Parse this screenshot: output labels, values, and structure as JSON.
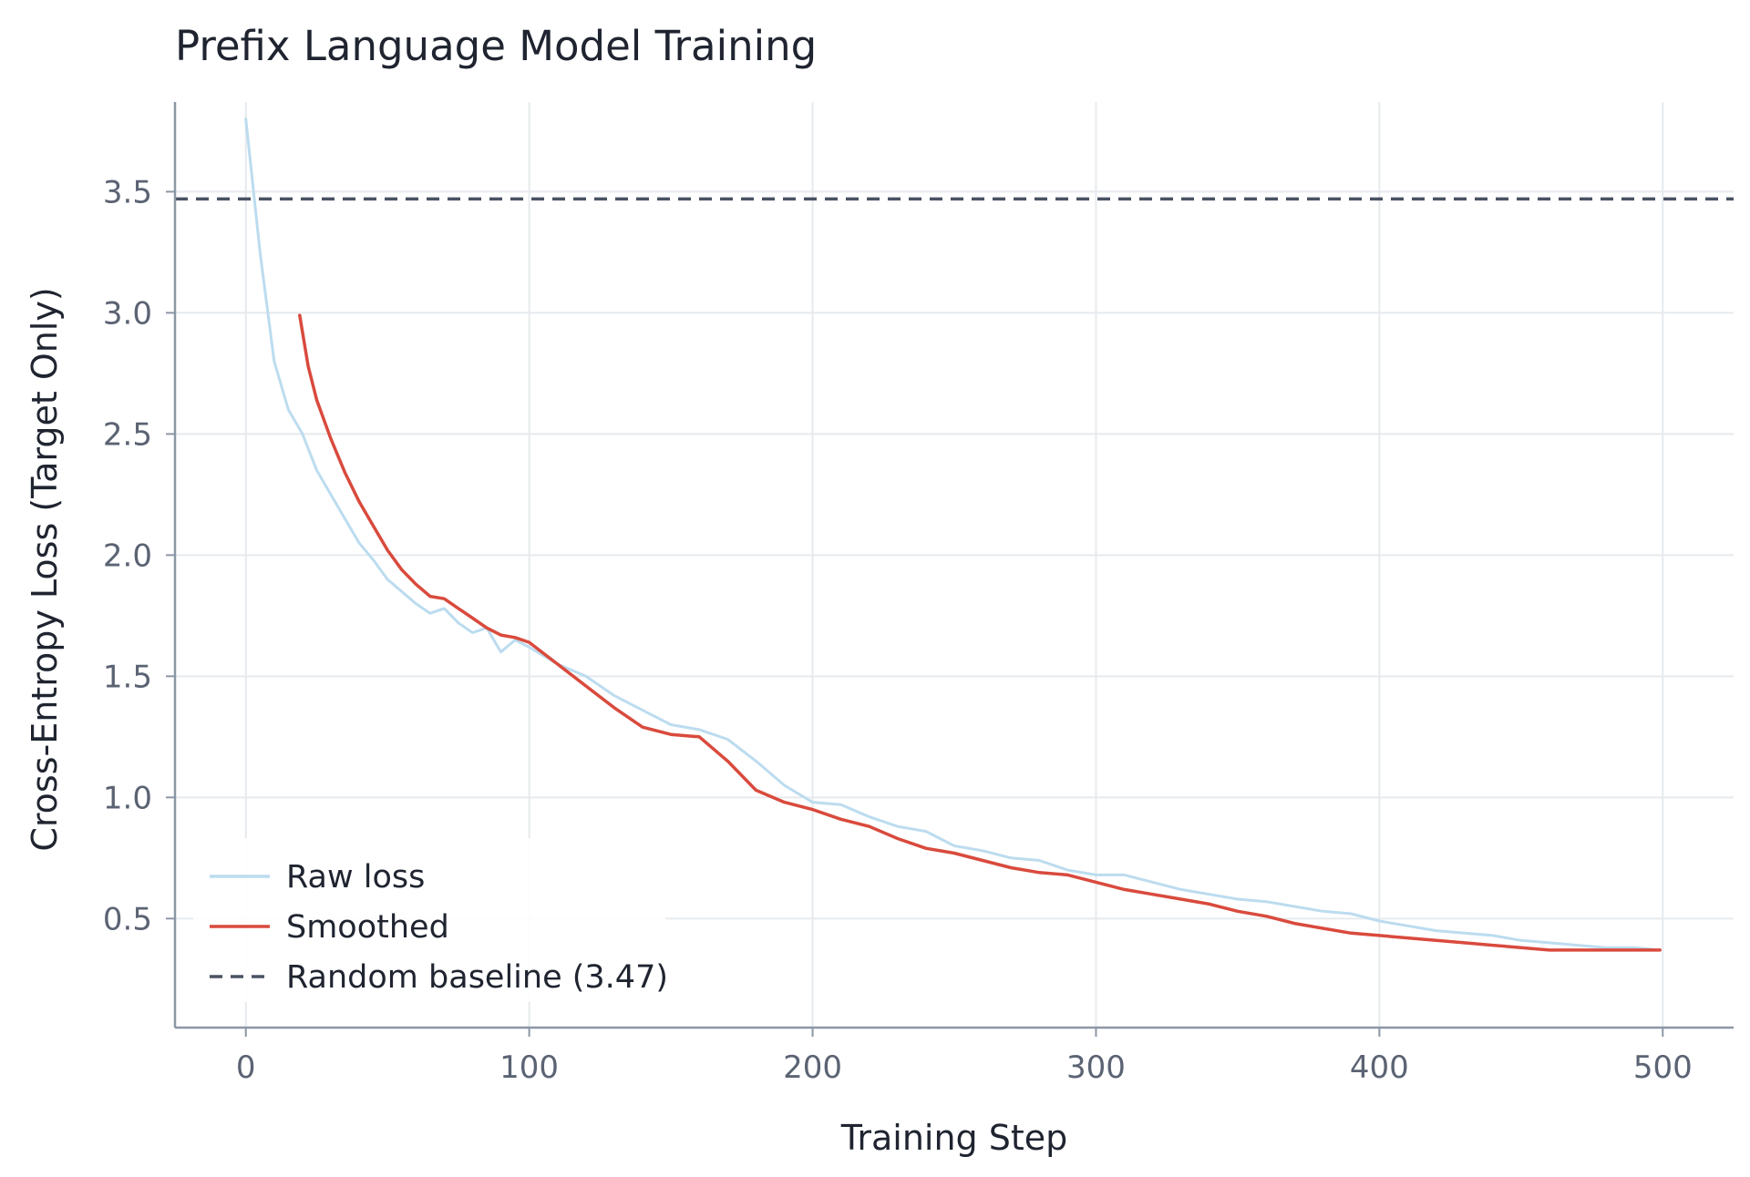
{
  "chart_data": {
    "type": "line",
    "title": "Prefix Language Model Training",
    "xlabel": "Training Step",
    "ylabel": "Cross-Entropy Loss (Target Only)",
    "xlim": [
      -25,
      525
    ],
    "ylim": [
      0.05,
      3.87
    ],
    "xticks": [
      0,
      100,
      200,
      300,
      400,
      500
    ],
    "yticks": [
      0.5,
      1.0,
      1.5,
      2.0,
      2.5,
      3.0,
      3.5
    ],
    "xtick_labels": [
      "0",
      "100",
      "200",
      "300",
      "400",
      "500"
    ],
    "ytick_labels": [
      "0.5",
      "1.0",
      "1.5",
      "2.0",
      "2.5",
      "3.0",
      "3.5"
    ],
    "grid": true,
    "legend_position": "lower-left",
    "legend": [
      {
        "label": "Raw loss",
        "style": "solid",
        "color": "#bcdcef"
      },
      {
        "label": "Smoothed",
        "style": "solid",
        "color": "#d94a3d"
      },
      {
        "label": "Random baseline (3.47)",
        "style": "dashed",
        "color": "#4a5263"
      }
    ],
    "baseline": {
      "y": 3.47,
      "color": "#4a5263"
    },
    "series": [
      {
        "key": "raw",
        "color": "#bcdcef",
        "x": [
          0,
          5,
          10,
          15,
          20,
          25,
          30,
          35,
          40,
          45,
          50,
          55,
          60,
          65,
          70,
          75,
          80,
          85,
          90,
          95,
          100,
          110,
          120,
          130,
          140,
          150,
          160,
          170,
          180,
          190,
          200,
          210,
          220,
          230,
          240,
          250,
          260,
          270,
          280,
          290,
          300,
          310,
          320,
          330,
          340,
          350,
          360,
          370,
          380,
          390,
          400,
          410,
          420,
          430,
          440,
          450,
          460,
          470,
          480,
          490,
          499
        ],
        "y": [
          3.8,
          3.25,
          2.8,
          2.6,
          2.5,
          2.35,
          2.25,
          2.15,
          2.05,
          1.98,
          1.9,
          1.85,
          1.8,
          1.76,
          1.78,
          1.72,
          1.68,
          1.7,
          1.6,
          1.65,
          1.62,
          1.55,
          1.5,
          1.42,
          1.36,
          1.3,
          1.28,
          1.24,
          1.15,
          1.05,
          0.98,
          0.97,
          0.92,
          0.88,
          0.86,
          0.8,
          0.78,
          0.75,
          0.74,
          0.7,
          0.68,
          0.68,
          0.65,
          0.62,
          0.6,
          0.58,
          0.57,
          0.55,
          0.53,
          0.52,
          0.49,
          0.47,
          0.45,
          0.44,
          0.43,
          0.41,
          0.4,
          0.39,
          0.38,
          0.38,
          0.37
        ]
      },
      {
        "key": "smoothed",
        "color": "#d94a3d",
        "x": [
          19,
          22,
          25,
          30,
          35,
          40,
          45,
          50,
          55,
          60,
          65,
          70,
          75,
          80,
          85,
          90,
          95,
          100,
          110,
          120,
          130,
          140,
          150,
          160,
          170,
          180,
          190,
          200,
          210,
          220,
          230,
          240,
          250,
          260,
          270,
          280,
          290,
          300,
          310,
          320,
          330,
          340,
          350,
          360,
          370,
          380,
          390,
          400,
          410,
          420,
          430,
          440,
          450,
          460,
          470,
          480,
          490,
          499
        ],
        "y": [
          2.99,
          2.78,
          2.64,
          2.48,
          2.34,
          2.22,
          2.12,
          2.02,
          1.94,
          1.88,
          1.83,
          1.82,
          1.78,
          1.74,
          1.7,
          1.67,
          1.66,
          1.64,
          1.55,
          1.46,
          1.37,
          1.29,
          1.26,
          1.25,
          1.15,
          1.03,
          0.98,
          0.95,
          0.91,
          0.88,
          0.83,
          0.79,
          0.77,
          0.74,
          0.71,
          0.69,
          0.68,
          0.65,
          0.62,
          0.6,
          0.58,
          0.56,
          0.53,
          0.51,
          0.48,
          0.46,
          0.44,
          0.43,
          0.42,
          0.41,
          0.4,
          0.39,
          0.38,
          0.37,
          0.37,
          0.37,
          0.37,
          0.37
        ]
      }
    ]
  }
}
